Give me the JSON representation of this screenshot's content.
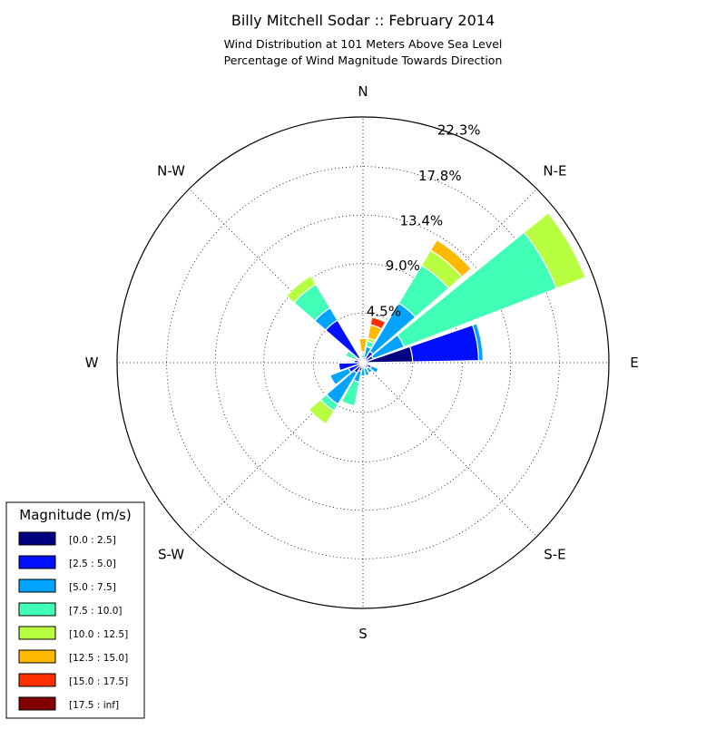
{
  "chart_data": {
    "type": "windrose",
    "title": "Billy Mitchell Sodar :: February 2014",
    "subtitle_line1": "Wind Distribution at 101 Meters Above Sea Level",
    "subtitle_line2": "Percentage of Wind Magnitude Towards Direction",
    "radial_max": 22.3,
    "radial_ticks": [
      4.5,
      9.0,
      13.4,
      17.8,
      22.3
    ],
    "radial_tick_labels": [
      "4.5%",
      "9.0%",
      "13.4%",
      "17.8%",
      "22.3%"
    ],
    "grid": true,
    "direction_labels": [
      {
        "name": "N",
        "angle": 0
      },
      {
        "name": "N-E",
        "angle": 45
      },
      {
        "name": "E",
        "angle": 90
      },
      {
        "name": "S-E",
        "angle": 135
      },
      {
        "name": "S",
        "angle": 180
      },
      {
        "name": "S-W",
        "angle": 225
      },
      {
        "name": "W",
        "angle": 270
      },
      {
        "name": "N-W",
        "angle": 315
      }
    ],
    "legend": {
      "title": "Magnitude (m/s)",
      "placement": "lower-left",
      "bins": [
        {
          "label": "[0.0 : 2.5]",
          "color": "#000080"
        },
        {
          "label": "[2.5 : 5.0]",
          "color": "#0010ff"
        },
        {
          "label": "[5.0 : 7.5]",
          "color": "#00a4ff"
        },
        {
          "label": "[7.5 : 10.0]",
          "color": "#40ffb7"
        },
        {
          "label": "[10.0 : 12.5]",
          "color": "#b7ff40"
        },
        {
          "label": "[12.5 : 15.0]",
          "color": "#ffb900"
        },
        {
          "label": "[15.0 : 17.5]",
          "color": "#ff3000"
        },
        {
          "label": "[17.5 : inf]",
          "color": "#800000"
        }
      ]
    },
    "sector_width_deg": 20,
    "sectors": [
      {
        "direction": 0,
        "cumulative": [
          0.1,
          0.3,
          0.7,
          0.9,
          1.0,
          2.2,
          2.2,
          2.2
        ]
      },
      {
        "direction": 20,
        "cumulative": [
          0.2,
          0.5,
          1.5,
          2.0,
          2.3,
          3.5,
          4.2,
          4.2
        ]
      },
      {
        "direction": 40,
        "cumulative": [
          0.3,
          1.2,
          6.3,
          10.3,
          11.9,
          13.0,
          13.0,
          13.0
        ]
      },
      {
        "direction": 60,
        "cumulative": [
          0.3,
          1.0,
          4.0,
          18.8,
          21.6,
          21.6,
          21.6,
          21.6
        ]
      },
      {
        "direction": 80,
        "cumulative": [
          4.5,
          10.5,
          10.9,
          10.9,
          10.9,
          10.9,
          10.9,
          10.9
        ]
      },
      {
        "direction": 100,
        "cumulative": [
          0.1,
          0.3,
          0.5,
          0.5,
          0.5,
          0.5,
          0.5,
          0.5
        ]
      },
      {
        "direction": 120,
        "cumulative": [
          0.2,
          0.8,
          1.5,
          1.5,
          1.5,
          1.5,
          1.5,
          1.5
        ]
      },
      {
        "direction": 140,
        "cumulative": [
          0.2,
          0.6,
          1.1,
          1.1,
          1.1,
          1.1,
          1.1,
          1.1
        ]
      },
      {
        "direction": 160,
        "cumulative": [
          0.2,
          0.5,
          1.2,
          1.2,
          1.2,
          1.2,
          1.2,
          1.2
        ]
      },
      {
        "direction": 180,
        "cumulative": [
          0.2,
          0.4,
          1.2,
          1.2,
          1.2,
          1.2,
          1.2,
          1.2
        ]
      },
      {
        "direction": 200,
        "cumulative": [
          0.2,
          0.8,
          1.8,
          4.0,
          4.0,
          4.0,
          4.0,
          4.0
        ]
      },
      {
        "direction": 220,
        "cumulative": [
          0.2,
          1.1,
          4.4,
          5.1,
          6.5,
          6.5,
          6.5,
          6.5
        ]
      },
      {
        "direction": 240,
        "cumulative": [
          0.3,
          1.4,
          3.2,
          3.2,
          3.2,
          3.2,
          3.2,
          3.2
        ]
      },
      {
        "direction": 260,
        "cumulative": [
          0.2,
          2.2,
          2.2,
          2.2,
          2.2,
          2.2,
          2.2,
          2.2
        ]
      },
      {
        "direction": 280,
        "cumulative": [
          0.3,
          0.8,
          0.8,
          0.8,
          0.8,
          0.8,
          0.8,
          0.8
        ]
      },
      {
        "direction": 300,
        "cumulative": [
          0.2,
          0.5,
          0.7,
          1.7,
          1.7,
          1.7,
          1.7,
          1.7
        ]
      },
      {
        "direction": 320,
        "cumulative": [
          0.5,
          4.5,
          5.8,
          8.3,
          9.2,
          9.2,
          9.2,
          9.2
        ]
      },
      {
        "direction": 340,
        "cumulative": [
          0.1,
          0.2,
          0.2,
          0.2,
          0.2,
          0.2,
          0.2,
          0.2
        ]
      }
    ]
  }
}
